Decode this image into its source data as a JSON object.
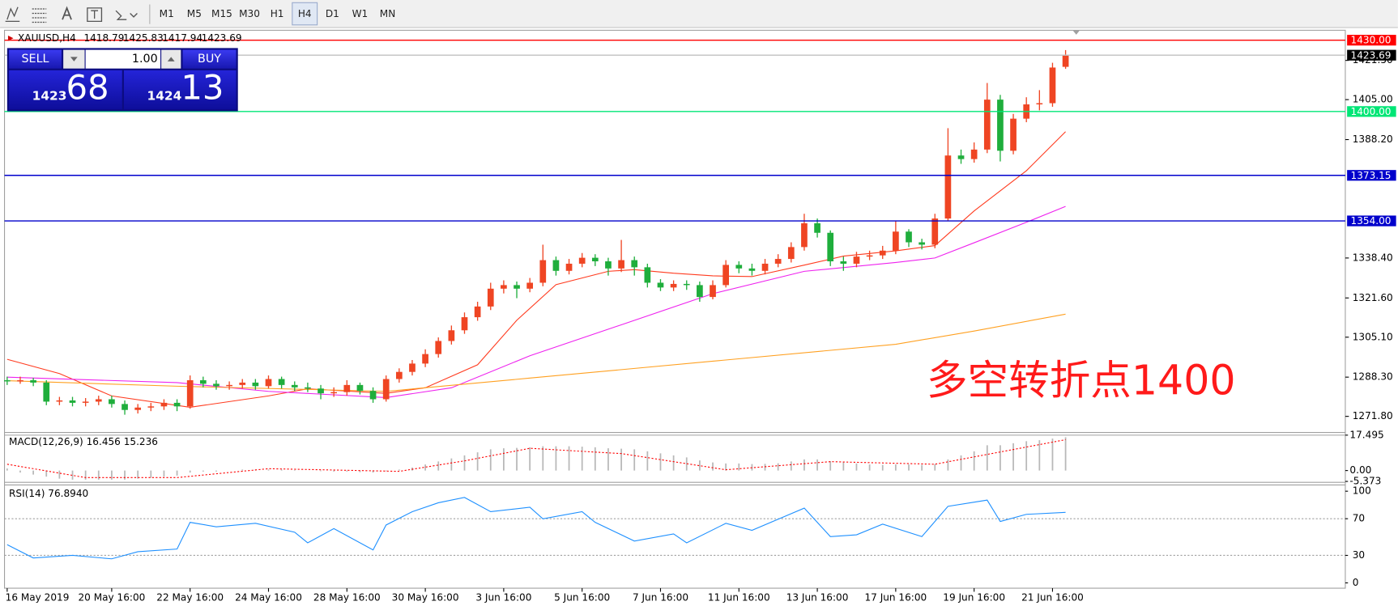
{
  "toolbar": {
    "timeframes": [
      "M1",
      "M5",
      "M15",
      "M30",
      "H1",
      "H4",
      "D1",
      "W1",
      "MN"
    ],
    "selected": "H4"
  },
  "trade_panel": {
    "sell": "SELL",
    "buy": "BUY",
    "lots": "1.00",
    "bid": {
      "big": "1423",
      "small": "68"
    },
    "ask": {
      "big": "1424",
      "small": "13"
    }
  },
  "chart_data": {
    "type": "candlestick",
    "symbol": "XAUUSD,H4",
    "annotation": "多空转折点1400",
    "categories": [
      "16 May 2019",
      null,
      null,
      null,
      null,
      null,
      null,
      null,
      "20 May 16:00",
      null,
      null,
      null,
      null,
      null,
      "22 May 16:00",
      null,
      null,
      null,
      null,
      null,
      "24 May 16:00",
      null,
      null,
      null,
      null,
      null,
      "28 May 16:00",
      null,
      null,
      null,
      null,
      null,
      "30 May 16:00",
      null,
      null,
      null,
      null,
      null,
      "3 Jun 16:00",
      null,
      null,
      null,
      null,
      null,
      "5 Jun 16:00",
      null,
      null,
      null,
      null,
      null,
      "7 Jun 16:00",
      null,
      null,
      null,
      null,
      null,
      "11 Jun 16:00",
      null,
      null,
      null,
      null,
      null,
      "13 Jun 16:00",
      null,
      null,
      null,
      null,
      null,
      "17 Jun 16:00",
      null,
      null,
      null,
      null,
      null,
      "19 Jun 16:00",
      null,
      null,
      null,
      null,
      null,
      "21 Jun 16:00",
      null
    ],
    "open": [
      1287,
      1286.5,
      1287,
      1286,
      1278,
      1278.5,
      1277.5,
      1278,
      1279,
      1277,
      1274.5,
      1275.5,
      1276,
      1277.5,
      1276,
      1287,
      1285.5,
      1284.5,
      1285,
      1286,
      1284.5,
      1287.5,
      1285,
      1284,
      1283.5,
      1281.5,
      1282,
      1285,
      1282.5,
      1279,
      1287.5,
      1290.5,
      1294,
      1298,
      1303.5,
      1308,
      1313.5,
      1318,
      1325.5,
      1327,
      1325.5,
      1328,
      1337.5,
      1333,
      1336,
      1338.5,
      1337,
      1334,
      1337.5,
      1334.5,
      1328,
      1326,
      1327.5,
      1327,
      1322,
      1327,
      1335.5,
      1334,
      1333,
      1336,
      1338,
      1343,
      1353,
      1349,
      1337,
      1336,
      1339,
      1339.5,
      1341.5,
      1349.5,
      1345,
      1344,
      1355,
      1381.5,
      1380,
      1384,
      1405,
      1383.5,
      1397,
      1403,
      1403.5,
      1418.79
    ],
    "high": [
      1288.5,
      1288.5,
      1288,
      1287,
      1280,
      1280,
      1279.5,
      1280.5,
      1280.5,
      1278.5,
      1277,
      1277.5,
      1279,
      1279,
      1289,
      1288.5,
      1287,
      1286.5,
      1287.5,
      1287.5,
      1289,
      1288.5,
      1286.5,
      1286,
      1285,
      1284,
      1287,
      1286,
      1284,
      1289,
      1292,
      1295.5,
      1300,
      1305,
      1310,
      1315.5,
      1320,
      1328,
      1329,
      1328.5,
      1330,
      1344,
      1339,
      1338,
      1340.5,
      1340,
      1338.5,
      1346,
      1339,
      1336,
      1329.5,
      1329,
      1329,
      1328.5,
      1329,
      1337.5,
      1337,
      1336,
      1338,
      1340,
      1345,
      1357,
      1355,
      1350,
      1339,
      1341,
      1341.5,
      1343.5,
      1354,
      1350.5,
      1346.5,
      1357,
      1393,
      1384,
      1387,
      1412,
      1407,
      1399,
      1406,
      1409,
      1420.5,
      1425.83
    ],
    "low": [
      1285,
      1285.5,
      1284.5,
      1276.5,
      1276.5,
      1276,
      1276,
      1276.5,
      1275.5,
      1272.5,
      1273,
      1274,
      1274.5,
      1274,
      1275,
      1284,
      1283,
      1283,
      1283.5,
      1283,
      1283.5,
      1283.5,
      1282.5,
      1282,
      1279,
      1280,
      1280.5,
      1281,
      1277.5,
      1278,
      1286,
      1289,
      1292.5,
      1296.5,
      1302,
      1306.5,
      1312,
      1316.5,
      1323.5,
      1321.5,
      1324,
      1326.5,
      1331,
      1331.5,
      1334.5,
      1335,
      1331,
      1332.5,
      1331,
      1326,
      1324.5,
      1324.5,
      1325,
      1320,
      1321,
      1326,
      1332,
      1331,
      1331.5,
      1334.5,
      1336.5,
      1341.5,
      1347,
      1335,
      1333,
      1334.5,
      1337.5,
      1338,
      1340,
      1343,
      1342,
      1342.5,
      1354,
      1378,
      1378.5,
      1382.5,
      1379,
      1382,
      1395.5,
      1400.5,
      1402,
      1417.94
    ],
    "close": [
      1286.5,
      1287,
      1286,
      1278,
      1278.5,
      1277.5,
      1278,
      1279,
      1277,
      1274.5,
      1275.5,
      1276,
      1277.5,
      1276,
      1287,
      1285.5,
      1284.5,
      1285,
      1286,
      1284.5,
      1287.5,
      1285,
      1284,
      1283.5,
      1281.5,
      1282,
      1285,
      1282.5,
      1279,
      1287.5,
      1290.5,
      1294,
      1298,
      1303.5,
      1308,
      1313.5,
      1318,
      1325.5,
      1327,
      1325.5,
      1328,
      1337.5,
      1333,
      1336,
      1338.5,
      1337,
      1334,
      1337.5,
      1334.5,
      1328,
      1326,
      1327.5,
      1327,
      1322,
      1327,
      1335.5,
      1334,
      1333,
      1336,
      1338,
      1343,
      1353,
      1349,
      1337,
      1336,
      1339,
      1339.5,
      1341.5,
      1349.5,
      1345,
      1344,
      1355,
      1381.5,
      1380,
      1384,
      1405,
      1383.5,
      1397,
      1403,
      1403.5,
      1418.5,
      1423.69
    ],
    "up_color": "#ef4523",
    "down_color": "#1fae3c",
    "ylim": [
      1265.4,
      1433.8
    ],
    "yticks": [
      {
        "value": 1271.8,
        "label": "1271.80"
      },
      {
        "value": 1288.3,
        "label": "1288.30"
      },
      {
        "value": 1305.1,
        "label": "1305.10"
      },
      {
        "value": 1321.6,
        "label": "1321.60"
      },
      {
        "value": 1338.4,
        "label": "1338.40"
      },
      {
        "value": 1388.2,
        "label": "1388.20"
      },
      {
        "value": 1405,
        "label": "1405.00"
      },
      {
        "value": 1421.5,
        "label": "1421.50"
      }
    ],
    "levels": [
      {
        "value": 1430,
        "label": "1430.00",
        "color": "#ff0000"
      },
      {
        "value": 1423.69,
        "color": "#c0c0c0"
      },
      {
        "value": 1400,
        "label": "1400.00",
        "color": "#00e676"
      },
      {
        "value": 1373.15,
        "color": "#0000cc"
      },
      {
        "value": 1354,
        "label": "1354.00",
        "color": "#0000cc"
      }
    ],
    "moving_averages": [
      {
        "color": "#ff3b1f",
        "x": [
          0,
          4,
          8,
          14,
          20,
          23,
          29,
          32,
          36,
          39,
          42,
          46,
          48,
          51,
          54,
          57,
          61,
          64,
          68,
          71,
          74,
          78,
          81
        ],
        "values": [
          1295.8,
          1289.8,
          1280.4,
          1275.6,
          1280.4,
          1283.4,
          1281.5,
          1283.8,
          1293.5,
          1312.2,
          1327.2,
          1332.8,
          1333.5,
          1332,
          1330.9,
          1330.6,
          1335.4,
          1339.2,
          1341.4,
          1343.6,
          1358.2,
          1375.1,
          1391.5
        ]
      },
      {
        "color": "#ee22ee",
        "x": [
          0,
          13,
          20,
          29,
          34,
          40,
          47,
          54,
          61,
          68,
          71,
          74,
          78,
          81
        ],
        "values": [
          1288.3,
          1286,
          1282.3,
          1279.7,
          1283.8,
          1297.3,
          1310.3,
          1323.4,
          1332.8,
          1336.5,
          1338.4,
          1344.8,
          1353.4,
          1360.1
        ]
      },
      {
        "color": "#ffa020",
        "x": [
          0,
          13,
          29,
          40,
          54,
          68,
          74,
          81
        ],
        "values": [
          1286.8,
          1284.5,
          1282.3,
          1287.9,
          1295,
          1302.1,
          1307.7,
          1314.8
        ]
      }
    ],
    "macd": {
      "label": "MACD(12,26,9) 16.456 15.236",
      "ylim": [
        -5.373,
        17.495
      ],
      "yticks": [
        17.495,
        {
          "value": 0,
          "label": "0.00"
        },
        -5.373
      ],
      "color": "#b8b8b8",
      "signal_color": "#ff0000",
      "histogram": [
        1,
        -1,
        -2,
        -3,
        -4,
        -4.5,
        -4.5,
        -4.5,
        -4.5,
        -4.5,
        -4,
        -3.5,
        -3,
        -2.5,
        -1,
        -0.5,
        -0.5,
        0,
        0.5,
        0.5,
        0.5,
        0.5,
        0.3,
        0,
        -0.3,
        -0.5,
        -0.5,
        -0.8,
        -1,
        -0.3,
        0.5,
        1.5,
        3,
        4.5,
        6,
        7.5,
        9,
        10.5,
        11,
        11.2,
        11.5,
        12,
        12,
        12,
        11.8,
        11.5,
        11,
        10.8,
        10.5,
        9.5,
        8.5,
        7.5,
        6.5,
        5,
        4,
        3.5,
        3.5,
        3.2,
        3.3,
        3.6,
        4.5,
        5.5,
        5.5,
        4.6,
        4,
        3.5,
        3,
        2.8,
        3,
        3,
        2.8,
        3.2,
        5.5,
        7.5,
        9.5,
        12.5,
        12.5,
        13.5,
        14.5,
        15,
        15.8,
        16.456
      ],
      "signal": {
        "x": [
          0,
          6,
          13,
          20,
          30,
          35,
          40,
          47,
          55,
          63,
          71,
          76,
          81
        ],
        "values": [
          3.1,
          -3.5,
          -3.5,
          0.9,
          -0.4,
          4.8,
          11,
          8.4,
          0.4,
          4.4,
          3.1,
          9.2,
          15.236
        ]
      }
    },
    "rsi": {
      "label": "RSI(14) 76.8940",
      "ylim": [
        -5.8,
        106.8
      ],
      "yticks": [
        100,
        70,
        30,
        0
      ],
      "levels": [
        70,
        30
      ],
      "color": "#1e90ff",
      "x": [
        0,
        2,
        5,
        8,
        10,
        13,
        14,
        16,
        19,
        22,
        23,
        25,
        28,
        29,
        31,
        33,
        35,
        37,
        40,
        41,
        44,
        45,
        48,
        51,
        52,
        55,
        57,
        61,
        63,
        65,
        67,
        70,
        72,
        75,
        76,
        78,
        81
      ],
      "values": [
        41.7,
        27.2,
        30,
        26.2,
        34,
        36.9,
        66,
        61.2,
        65,
        55.3,
        43.7,
        59.2,
        35.9,
        63.1,
        77.7,
        87.4,
        93.2,
        77.7,
        82.5,
        69.9,
        77.7,
        66,
        45.6,
        53.4,
        43.7,
        65,
        57.3,
        81.6,
        50.5,
        52.4,
        64.1,
        50.5,
        83.5,
        90.3,
        67,
        74.8,
        76.894
      ]
    }
  }
}
